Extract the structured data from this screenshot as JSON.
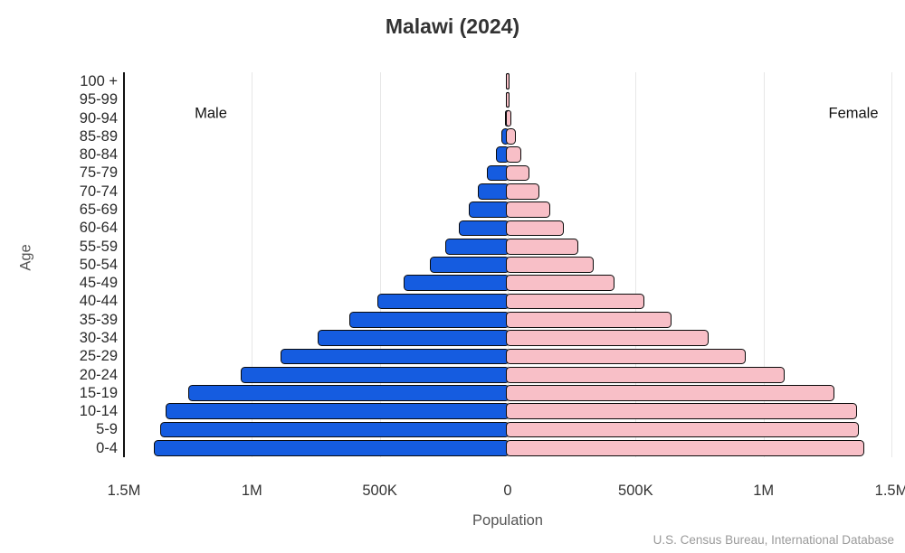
{
  "title": "Malawi (2024)",
  "chart_data": {
    "type": "bar",
    "subtype": "population-pyramid",
    "title": "Malawi (2024)",
    "xlabel": "Population",
    "ylabel": "Age",
    "side_labels": {
      "left": "Male",
      "right": "Female"
    },
    "categories_top_down": [
      "100 +",
      "95-99",
      "90-94",
      "85-89",
      "80-84",
      "75-79",
      "70-74",
      "65-69",
      "60-64",
      "55-59",
      "50-54",
      "45-49",
      "40-44",
      "35-39",
      "30-34",
      "25-29",
      "20-24",
      "15-19",
      "10-14",
      "5-9",
      "0-4"
    ],
    "series": [
      {
        "name": "Male",
        "side": "left",
        "color": "#155ce0",
        "values": [
          300,
          1500,
          5000,
          18000,
          42000,
          74000,
          110000,
          148000,
          187000,
          240000,
          300000,
          400000,
          505000,
          612000,
          737000,
          884000,
          1039000,
          1244000,
          1333000,
          1352000,
          1377000
        ]
      },
      {
        "name": "Female",
        "side": "right",
        "color": "#f8bfc7",
        "values": [
          500,
          2000,
          7000,
          25000,
          46000,
          81000,
          117000,
          159000,
          212000,
          272000,
          332000,
          413000,
          527000,
          636000,
          778000,
          926000,
          1078000,
          1272000,
          1361000,
          1368000,
          1389000
        ]
      }
    ],
    "xlim": [
      -1500000,
      1500000
    ],
    "xticks": {
      "values": [
        -1500000,
        -1000000,
        -500000,
        0,
        500000,
        1000000,
        1500000
      ],
      "labels": [
        "1.5M",
        "1M",
        "500K",
        "0",
        "500K",
        "1M",
        "1.5M"
      ]
    },
    "grid": true,
    "bar_border_color": "#0a0a0a",
    "gridline_color": "#e7e7e7",
    "source": "U.S. Census Bureau, International Database"
  }
}
